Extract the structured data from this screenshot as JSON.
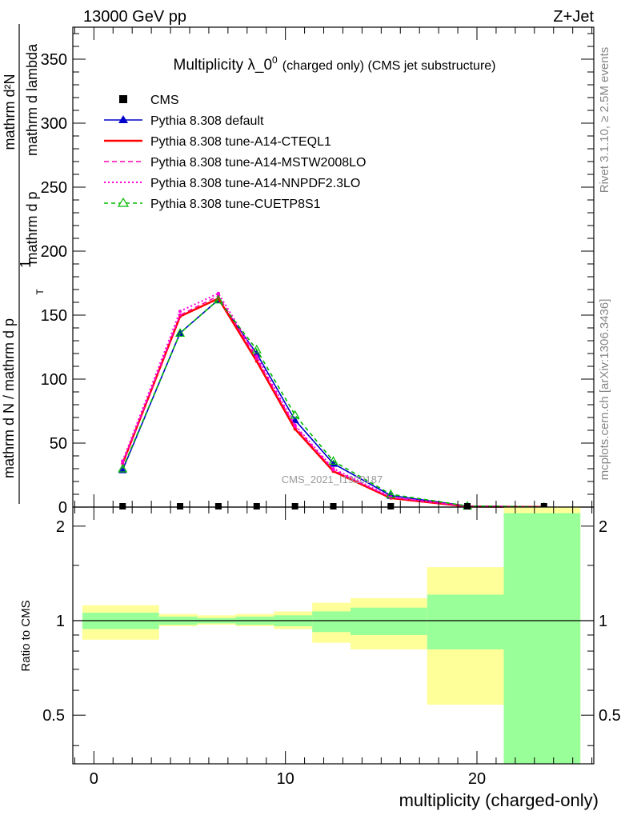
{
  "header": {
    "left": "13000 GeV pp",
    "right": "Z+Jet"
  },
  "side": {
    "rivet": "Rivet 3.1.10, ≥ 2.5M events",
    "mcplots": "mcplots.cern.ch [arXiv:1306.3436]"
  },
  "chart_data": {
    "type": "line",
    "title_main": "Multiplicity λ_0",
    "title_sup": "0",
    "title_suffix": "(charged only) (CMS jet substructure)",
    "watermark": "CMS_2021_I1920187",
    "main_plot": {
      "ylabel_lines": [
        "1",
        "mathrm d N / mathrm d p_T mathrm d p_T mathrm d lambda",
        "mathrm d^2N"
      ],
      "ylabel_numer": "mathrm d²N",
      "ylabel_denom_a": "mathrm d N / mathrm d p",
      "ylabel_denom_b": "mathrm d p",
      "ylabel_denom_c": "mathrm d lambda",
      "ylabel_sub": "T",
      "ylabel_one": "1",
      "ylim": [
        0,
        375
      ],
      "yticks": [
        0,
        50,
        100,
        150,
        200,
        250,
        300,
        350
      ],
      "legend_position": "top-left",
      "series": [
        {
          "name": "CMS",
          "style": "marker-square",
          "color": "#000000",
          "x": [
            1.5,
            4.5,
            6.5,
            8.5,
            10.5,
            12.5,
            15.5,
            19.5,
            23.5
          ],
          "y": [
            0,
            0,
            0,
            0,
            0,
            0,
            0,
            0,
            0
          ]
        },
        {
          "name": "Pythia 8.308 default",
          "style": "solid-triangle",
          "color": "#0000cc",
          "x": [
            1.5,
            4.5,
            6.5,
            8.5,
            10.5,
            12.5,
            15.5,
            19.5,
            23.5
          ],
          "y": [
            29,
            136,
            162,
            120,
            68,
            34,
            9,
            0.8,
            0.1
          ]
        },
        {
          "name": "Pythia 8.308 tune-A14-CTEQL1",
          "style": "solid",
          "color": "#ff0000",
          "x": [
            1.5,
            4.5,
            6.5,
            8.5,
            10.5,
            12.5,
            15.5,
            19.5,
            23.5
          ],
          "y": [
            34,
            149,
            163,
            114,
            61,
            28,
            7,
            0.5,
            0.05
          ]
        },
        {
          "name": "Pythia 8.308 tune-A14-MSTW2008LO",
          "style": "dashed",
          "color": "#ff00aa",
          "x": [
            1.5,
            4.5,
            6.5,
            8.5,
            10.5,
            12.5,
            15.5,
            19.5,
            23.5
          ],
          "y": [
            34,
            150,
            165,
            116,
            63,
            29,
            7.5,
            0.5,
            0.05
          ]
        },
        {
          "name": "Pythia 8.308 tune-A14-NNPDF2.3LO",
          "style": "dotted",
          "color": "#ff00dd",
          "x": [
            1.5,
            4.5,
            6.5,
            8.5,
            10.5,
            12.5,
            15.5,
            19.5,
            23.5
          ],
          "y": [
            36,
            153,
            167,
            118,
            64,
            30,
            8,
            0.6,
            0.05
          ]
        },
        {
          "name": "Pythia 8.308 tune-CUETP8S1",
          "style": "dashed-open-triangle",
          "color": "#00bb00",
          "x": [
            1.5,
            4.5,
            6.5,
            8.5,
            10.5,
            12.5,
            15.5,
            19.5,
            23.5
          ],
          "y": [
            30,
            136,
            162,
            123,
            72,
            36,
            10,
            0.9,
            0.1
          ]
        }
      ]
    },
    "ratio_plot": {
      "ylabel": "Ratio to CMS",
      "ylim": [
        0.35,
        2.3
      ],
      "yticks": [
        0.5,
        1,
        2
      ],
      "reference": 1,
      "bins": [
        {
          "lo": -0.6,
          "hi": 3.4,
          "stat": [
            0.94,
            1.06
          ],
          "total": [
            0.87,
            1.12
          ]
        },
        {
          "lo": 3.4,
          "hi": 5.4,
          "stat": [
            0.97,
            1.03
          ],
          "total": [
            0.96,
            1.05
          ]
        },
        {
          "lo": 5.4,
          "hi": 7.4,
          "stat": [
            0.98,
            1.02
          ],
          "total": [
            0.97,
            1.04
          ]
        },
        {
          "lo": 7.4,
          "hi": 9.4,
          "stat": [
            0.97,
            1.03
          ],
          "total": [
            0.96,
            1.05
          ]
        },
        {
          "lo": 9.4,
          "hi": 11.4,
          "stat": [
            0.96,
            1.04
          ],
          "total": [
            0.94,
            1.07
          ]
        },
        {
          "lo": 11.4,
          "hi": 13.4,
          "stat": [
            0.92,
            1.07
          ],
          "total": [
            0.85,
            1.14
          ]
        },
        {
          "lo": 13.4,
          "hi": 17.4,
          "stat": [
            0.9,
            1.1
          ],
          "total": [
            0.81,
            1.18
          ]
        },
        {
          "lo": 17.4,
          "hi": 21.4,
          "stat": [
            0.81,
            1.21
          ],
          "total": [
            0.54,
            1.48
          ]
        },
        {
          "lo": 21.4,
          "hi": 25.4,
          "stat": [
            0.35,
            2.2
          ],
          "total": [
            0.35,
            2.3
          ]
        }
      ],
      "colors": {
        "stat": "#99ff99",
        "total": "#ffff99"
      }
    },
    "x_axis": {
      "label": "multiplicity (charged-only)",
      "xlim": [
        -1.1,
        26.1
      ],
      "ticks": [
        0,
        10,
        20
      ]
    }
  }
}
